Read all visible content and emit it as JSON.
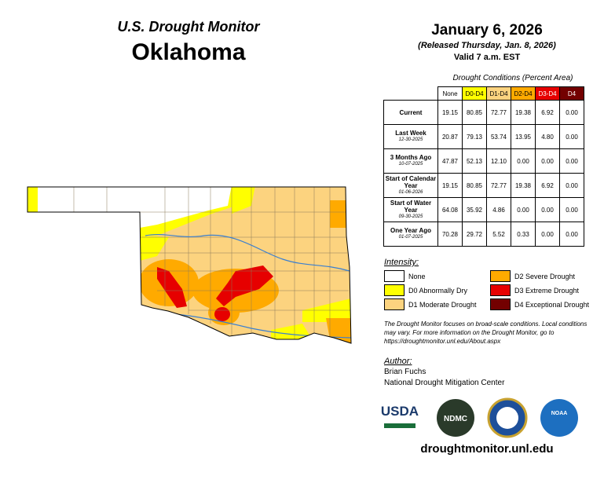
{
  "header": {
    "title": "U.S. Drought Monitor",
    "state": "Oklahoma",
    "date": "January 6, 2026",
    "released": "(Released Thursday, Jan. 8, 2026)",
    "valid": "Valid 7 a.m. EST"
  },
  "table": {
    "caption": "Drought Conditions (Percent Area)",
    "columns": [
      {
        "label": "None",
        "color": "#ffffff",
        "text": "#000"
      },
      {
        "label": "D0-D4",
        "color": "#ffff00",
        "text": "#000"
      },
      {
        "label": "D1-D4",
        "color": "#fcd37f",
        "text": "#000"
      },
      {
        "label": "D2-D4",
        "color": "#ffaa00",
        "text": "#000"
      },
      {
        "label": "D3-D4",
        "color": "#e60000",
        "text": "#fff"
      },
      {
        "label": "D4",
        "color": "#730000",
        "text": "#fff"
      }
    ],
    "rows": [
      {
        "label": "Current",
        "values": [
          "19.15",
          "80.85",
          "72.77",
          "19.38",
          "6.92",
          "0.00"
        ]
      },
      {
        "label": "Last Week",
        "date": "12-30-2025",
        "values": [
          "20.87",
          "79.13",
          "53.74",
          "13.95",
          "4.80",
          "0.00"
        ]
      },
      {
        "label": "3 Months Ago",
        "date": "10-07-2025",
        "values": [
          "47.87",
          "52.13",
          "12.10",
          "0.00",
          "0.00",
          "0.00"
        ]
      },
      {
        "label": "Start of Calendar Year",
        "date": "01-06-2026",
        "values": [
          "19.15",
          "80.85",
          "72.77",
          "19.38",
          "6.92",
          "0.00"
        ]
      },
      {
        "label": "Start of Water Year",
        "date": "09-30-2025",
        "values": [
          "64.08",
          "35.92",
          "4.86",
          "0.00",
          "0.00",
          "0.00"
        ]
      },
      {
        "label": "One Year Ago",
        "date": "01-07-2025",
        "values": [
          "70.28",
          "29.72",
          "5.52",
          "0.33",
          "0.00",
          "0.00"
        ]
      }
    ]
  },
  "legend": {
    "title": "Intensity:",
    "items": [
      {
        "label": "None",
        "color": "#ffffff"
      },
      {
        "label": "D0 Abnormally Dry",
        "color": "#ffff00"
      },
      {
        "label": "D1 Moderate Drought",
        "color": "#fcd37f"
      },
      {
        "label": "D2 Severe Drought",
        "color": "#ffaa00"
      },
      {
        "label": "D3 Extreme Drought",
        "color": "#e60000"
      },
      {
        "label": "D4 Exceptional Drought",
        "color": "#730000"
      }
    ]
  },
  "note": "The Drought Monitor focuses on broad-scale conditions. Local conditions may vary. For more information on the Drought Monitor, go to https://droughtmonitor.unl.edu/About.aspx",
  "author": {
    "heading": "Author:",
    "name": "Brian Fuchs",
    "org": "National Drought Mitigation Center"
  },
  "logos": [
    "USDA",
    "NDMC",
    "NOAA"
  ],
  "url": "droughtmonitor.unl.edu"
}
